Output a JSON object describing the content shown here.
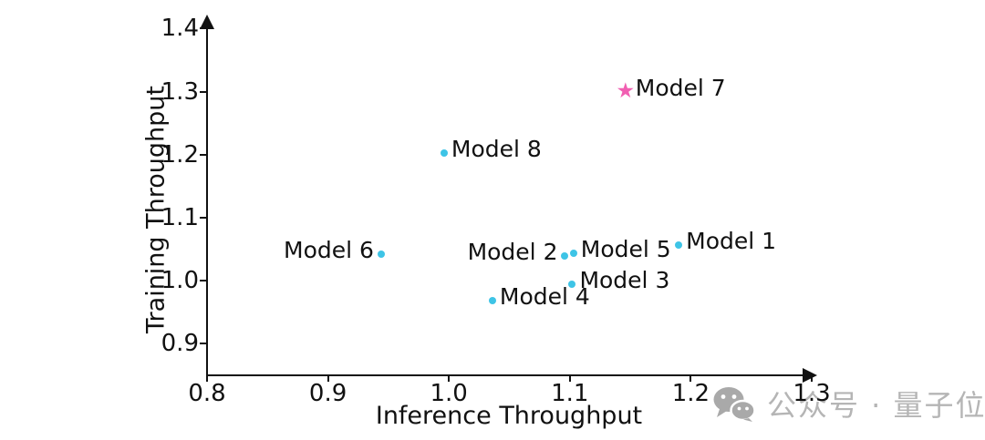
{
  "chart_data": {
    "type": "scatter",
    "title": "",
    "xlabel": "Inference Throughput",
    "ylabel": "Training Throughput",
    "xlim": [
      0.8,
      1.3
    ],
    "ylim": [
      0.85,
      1.4
    ],
    "grid": false,
    "legend": "none",
    "xtick_values": [
      0.8,
      0.9,
      1.0,
      1.1,
      1.2,
      1.3
    ],
    "xtick_labels": [
      "0.8",
      "0.9",
      "1.0",
      "1.1",
      "1.2",
      "1.3"
    ],
    "ytick_values": [
      0.9,
      1.0,
      1.1,
      1.2,
      1.3,
      1.4
    ],
    "ytick_labels": [
      "0.9",
      "1.0",
      "1.1",
      "1.2",
      "1.3",
      "1.4"
    ],
    "points": [
      {
        "name": "Model 1",
        "x": 1.19,
        "y": 1.057,
        "marker": "dot",
        "label_side": "right"
      },
      {
        "name": "Model 2",
        "x": 1.096,
        "y": 1.039,
        "marker": "dot",
        "label_side": "left"
      },
      {
        "name": "Model 3",
        "x": 1.102,
        "y": 0.995,
        "marker": "dot",
        "label_side": "right"
      },
      {
        "name": "Model 4",
        "x": 1.036,
        "y": 0.968,
        "marker": "dot",
        "label_side": "right"
      },
      {
        "name": "Model 5",
        "x": 1.103,
        "y": 1.044,
        "marker": "dot",
        "label_side": "right"
      },
      {
        "name": "Model 6",
        "x": 0.944,
        "y": 1.042,
        "marker": "dot",
        "label_side": "left"
      },
      {
        "name": "Model 7",
        "x": 1.146,
        "y": 1.299,
        "marker": "star",
        "label_side": "right"
      },
      {
        "name": "Model 8",
        "x": 0.996,
        "y": 1.203,
        "marker": "dot",
        "label_side": "right"
      }
    ],
    "colors": {
      "dot": "#3EC4E6",
      "star": "#F15FB2",
      "axis": "#111111",
      "text": "#111111"
    },
    "star_glyph": "★"
  },
  "watermark": {
    "text": "公众号 · 量子位",
    "icon": "wechat-icon",
    "color": "#b5b5b5",
    "icon_color": "#a9a9a9"
  }
}
